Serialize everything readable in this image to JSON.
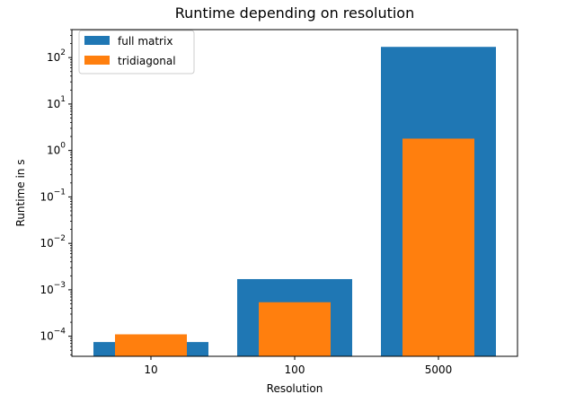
{
  "chart_data": {
    "type": "bar",
    "title": "Runtime depending on resolution",
    "xlabel": "Resolution",
    "ylabel": "Runtime in s",
    "yscale": "log",
    "ylim": [
      3.7e-05,
      400
    ],
    "categories": [
      "10",
      "100",
      "5000"
    ],
    "series": [
      {
        "name": "full matrix",
        "color": "#1f77b4",
        "values": [
          7.5e-05,
          0.0017,
          170
        ]
      },
      {
        "name": "tridiagonal",
        "color": "#ff7f0e",
        "values": [
          0.00011,
          0.00054,
          1.8
        ]
      }
    ],
    "y_ticks": [
      {
        "value": 0.0001,
        "base": "10",
        "exp": "−4"
      },
      {
        "value": 0.001,
        "base": "10",
        "exp": "−3"
      },
      {
        "value": 0.01,
        "base": "10",
        "exp": "−2"
      },
      {
        "value": 0.1,
        "base": "10",
        "exp": "−1"
      },
      {
        "value": 1,
        "base": "10",
        "exp": "0"
      },
      {
        "value": 10,
        "base": "10",
        "exp": "1"
      },
      {
        "value": 100,
        "base": "10",
        "exp": "2"
      }
    ],
    "legend_position": "top-left",
    "grid": false
  }
}
